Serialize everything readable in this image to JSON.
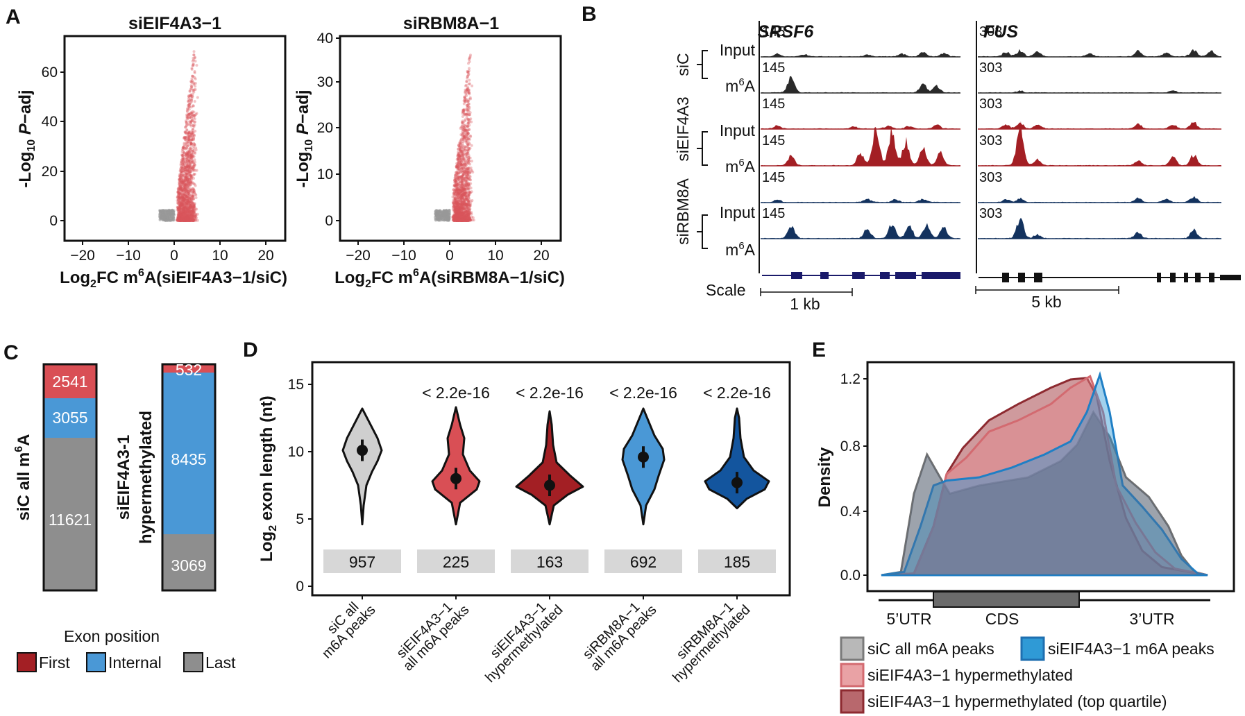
{
  "panelA": {
    "label": "A",
    "left": {
      "title": "siEIF4A3−1",
      "yticks": [
        "0",
        "20",
        "40",
        "60"
      ],
      "xticks": [
        "−20",
        "−10",
        "0",
        "10",
        "20"
      ],
      "ylabel_pre": "-Log",
      "ylabel_sub": "10",
      "ylabel_p": "P",
      "ylabel_post": "−adj",
      "xlabel_pre": "Log",
      "xlabel_sub": "2",
      "xlabel_mid": "FC m",
      "xlabel_sup": "6",
      "xlabel_post": "A(siEIF4A3−1/siC)"
    },
    "right": {
      "title": "siRBM8A−1",
      "yticks": [
        "0",
        "10",
        "20",
        "30",
        "40"
      ],
      "xticks": [
        "−20",
        "−10",
        "0",
        "10",
        "20"
      ],
      "ylabel_pre": "-Log",
      "ylabel_sub": "10",
      "ylabel_p": "P",
      "ylabel_post": "−adj",
      "xlabel_pre": "Log",
      "xlabel_sub": "2",
      "xlabel_mid": "FC m",
      "xlabel_sup": "6",
      "xlabel_post": "A(siRBM8A−1/siC)"
    }
  },
  "panelB": {
    "label": "B",
    "gene1": "SRSF6",
    "gene2": "FUS",
    "groups": [
      "siC",
      "siEIF4A3",
      "siRBM8A"
    ],
    "input_label": "Input",
    "m6a_pre": "m",
    "m6a_sup": "6",
    "m6a_post": "A",
    "scale1": "145",
    "scale2": "303",
    "scale_label": "Scale",
    "bar1": "1 kb",
    "bar2": "5 kb",
    "colors": {
      "siC": "#2a2a2a",
      "siEIF4A3": "#a31f24",
      "siRBM8A": "#13325e"
    }
  },
  "panelC": {
    "label": "C",
    "bar1": {
      "label_pre": "siC all m",
      "label_sup": "6",
      "label_post": "A",
      "first": "2541",
      "internal": "3055",
      "last": "11621"
    },
    "bar2": {
      "label1": "siEIF4A3-1",
      "label2": "hypermethylated",
      "first": "532",
      "internal": "8435",
      "last": "3069"
    },
    "legend_title": "Exon position",
    "legend": [
      "First",
      "Internal",
      "Last"
    ],
    "colors": {
      "first": "#a31f24",
      "internal": "#4a98d6",
      "last": "#8e8e8e",
      "first_bar": "#d94f55"
    }
  },
  "panelD": {
    "label": "D",
    "yticks": [
      "0",
      "5",
      "10",
      "15"
    ],
    "ylabel_pre": "Log",
    "ylabel_sub": "2",
    "ylabel_post": " exon length (nt)",
    "pvals": [
      "< 2.2e-16",
      "< 2.2e-16",
      "< 2.2e-16",
      "< 2.2e-16"
    ],
    "counts": [
      "957",
      "225",
      "163",
      "692",
      "185"
    ],
    "xlabels": [
      [
        "siC all",
        "m6A peaks"
      ],
      [
        "siEIF4A3−1",
        "all m6A peaks"
      ],
      [
        "siEIF4A3−1",
        "hypermethylated"
      ],
      [
        "siRBM8A−1",
        "all m6A peaks"
      ],
      [
        "siRBM8A−1",
        "hypermethylated"
      ]
    ],
    "colors": [
      "#cfcfcf",
      "#d94f55",
      "#a31f24",
      "#4a98d6",
      "#13559e"
    ],
    "medians": [
      10.1,
      8.0,
      7.5,
      9.6,
      7.7
    ]
  },
  "panelE": {
    "label": "E",
    "yticks": [
      "0.0",
      "0.4",
      "0.8",
      "1.2"
    ],
    "ylabel": "Density",
    "regions": [
      "5’UTR",
      "CDS",
      "3’UTR"
    ],
    "legend": [
      "siC all m6A peaks",
      "siEIF4A3−1 m6A peaks",
      "siEIF4A3−1 hypermethylated",
      "siEIF4A3−1 hypermethylated (top quartile)"
    ],
    "colors": [
      "#9a9a9a",
      "#2f9ad6",
      "#e4878b",
      "#a8474d"
    ]
  }
}
